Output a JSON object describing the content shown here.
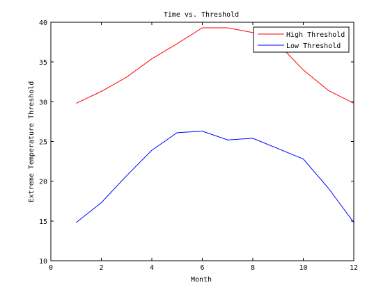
{
  "chart_data": {
    "type": "line",
    "title": "Time vs. Threshold",
    "xlabel": "Month",
    "ylabel": "Extreme Temperature Threshold",
    "xlim": [
      0,
      12
    ],
    "ylim": [
      10,
      40
    ],
    "xticks": [
      0,
      2,
      4,
      6,
      8,
      10,
      12
    ],
    "yticks": [
      10,
      15,
      20,
      25,
      30,
      35,
      40
    ],
    "grid": false,
    "legend_position": "top-right",
    "x": [
      1,
      2,
      3,
      4,
      5,
      6,
      7,
      8,
      9,
      10,
      11,
      12
    ],
    "series": [
      {
        "name": "High Threshold",
        "color": "#ff0000",
        "values": [
          29.8,
          31.3,
          33.1,
          35.4,
          37.3,
          39.3,
          39.3,
          38.7,
          37.3,
          34.0,
          31.4,
          29.8
        ]
      },
      {
        "name": "Low Threshold",
        "color": "#0000ff",
        "values": [
          14.8,
          17.3,
          20.7,
          23.9,
          26.1,
          26.3,
          25.2,
          25.4,
          24.1,
          22.8,
          19.1,
          14.8
        ]
      }
    ]
  }
}
